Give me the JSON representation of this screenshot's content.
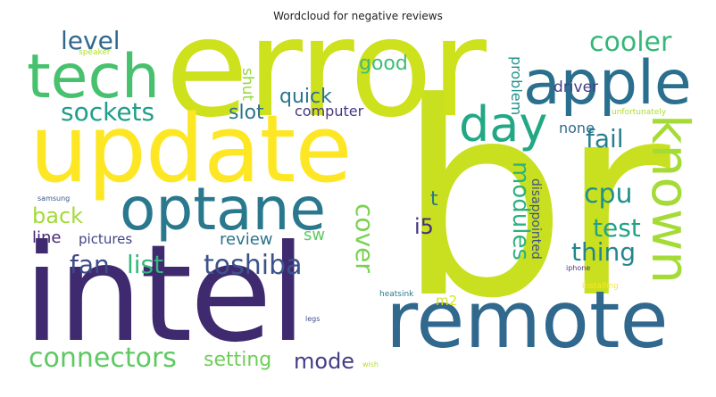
{
  "title": "Wordcloud for negative reviews",
  "words": {
    "br": {
      "text": "br",
      "color": "#c8e020"
    },
    "error": {
      "text": "error",
      "color": "#cde11d"
    },
    "update": {
      "text": "update",
      "color": "#fde725"
    },
    "intel": {
      "text": "intel",
      "color": "#3f2a70"
    },
    "remote": {
      "text": "remote",
      "color": "#31688e"
    },
    "optane": {
      "text": "optane",
      "color": "#2a788e"
    },
    "tech": {
      "text": "tech",
      "color": "#48c16e"
    },
    "apple": {
      "text": "apple",
      "color": "#2a6f8e"
    },
    "known": {
      "text": "known",
      "color": "#a5db36"
    },
    "day": {
      "text": "day",
      "color": "#22a884"
    },
    "toshiba": {
      "text": "toshiba",
      "color": "#3b528b"
    },
    "connectors": {
      "text": "connectors",
      "color": "#5ec962"
    },
    "sockets": {
      "text": "sockets",
      "color": "#1f9e89"
    },
    "cooler": {
      "text": "cooler",
      "color": "#35b779"
    },
    "fan": {
      "text": "fan",
      "color": "#3e4a89"
    },
    "list": {
      "text": "list",
      "color": "#35b779"
    },
    "level": {
      "text": "level",
      "color": "#30688e"
    },
    "cpu": {
      "text": "cpu",
      "color": "#21918c"
    },
    "test": {
      "text": "test",
      "color": "#20a386"
    },
    "thing": {
      "text": "thing",
      "color": "#25858e"
    },
    "modules": {
      "text": "modules",
      "color": "#2db27d"
    },
    "cover": {
      "text": "cover",
      "color": "#7ad151"
    },
    "fail": {
      "text": "fail",
      "color": "#277f8e"
    },
    "mode": {
      "text": "mode",
      "color": "#433d84"
    },
    "back": {
      "text": "back",
      "color": "#a2da37"
    },
    "quick": {
      "text": "quick",
      "color": "#2c728e"
    },
    "good": {
      "text": "good",
      "color": "#3fbc73"
    },
    "slot": {
      "text": "slot",
      "color": "#2b758e"
    },
    "setting": {
      "text": "setting",
      "color": "#6ece58"
    },
    "i5": {
      "text": "i5",
      "color": "#46307e"
    },
    "t": {
      "text": "t",
      "color": "#2a768e"
    },
    "review": {
      "text": "review",
      "color": "#2c738e"
    },
    "line": {
      "text": "line",
      "color": "#482576"
    },
    "pictures": {
      "text": "pictures",
      "color": "#414287"
    },
    "sw": {
      "text": "sw",
      "color": "#5ec962"
    },
    "computer": {
      "text": "computer",
      "color": "#453882"
    },
    "driver": {
      "text": "driver",
      "color": "#433e85"
    },
    "none": {
      "text": "none",
      "color": "#2f6c8e"
    },
    "shut": {
      "text": "shut",
      "color": "#95d840"
    },
    "problem": {
      "text": "problem",
      "color": "#21918c"
    },
    "disappointed": {
      "text": "disappointed",
      "color": "#3b528b"
    },
    "m2": {
      "text": "m2",
      "color": "#d8e219"
    },
    "unfortunately": {
      "text": "unfortunately",
      "color": "#addc30"
    },
    "speaker": {
      "text": "speaker",
      "color": "#b5de2b"
    },
    "samsung": {
      "text": "samsung",
      "color": "#38588c"
    },
    "heatsink": {
      "text": "heatsink",
      "color": "#2a788e"
    },
    "legs": {
      "text": "legs",
      "color": "#3b528b"
    },
    "iphone": {
      "text": "iphone",
      "color": "#443983"
    },
    "installing": {
      "text": "installing",
      "color": "#fde725"
    },
    "wish": {
      "text": "wish",
      "color": "#b5de2b"
    }
  }
}
